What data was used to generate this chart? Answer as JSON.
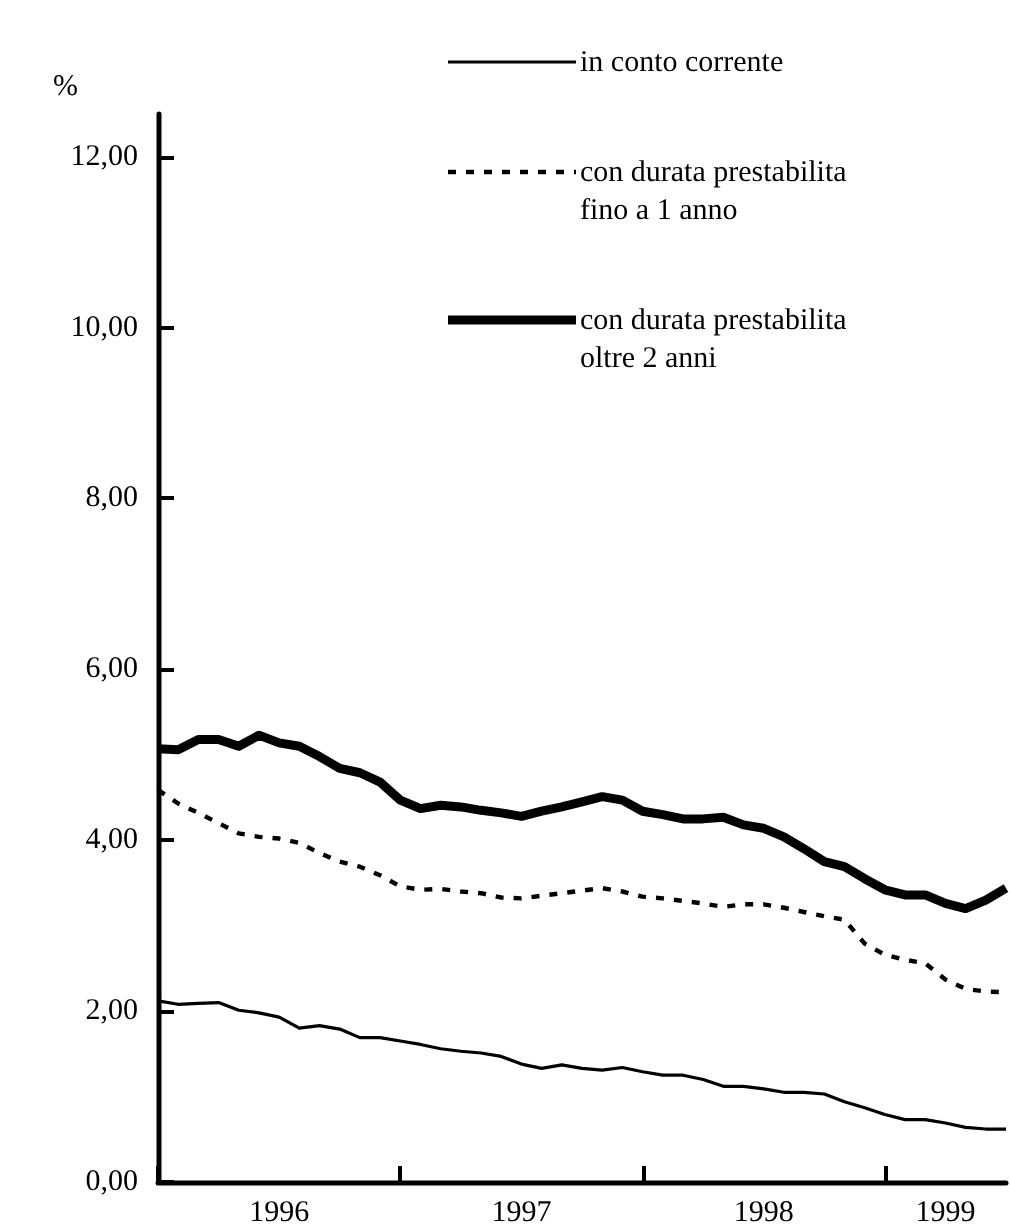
{
  "chart_data": {
    "type": "line",
    "ylabel": "%",
    "legend": "top right",
    "grid": false,
    "marker": "none",
    "x": [
      "1996-01",
      "1996-02",
      "1996-03",
      "1996-04",
      "1996-05",
      "1996-06",
      "1996-07",
      "1996-08",
      "1996-09",
      "1996-10",
      "1996-11",
      "1996-12",
      "1997-01",
      "1997-02",
      "1997-03",
      "1997-04",
      "1997-05",
      "1997-06",
      "1997-07",
      "1997-08",
      "1997-09",
      "1997-10",
      "1997-11",
      "1997-12",
      "1998-01",
      "1998-02",
      "1998-03",
      "1998-04",
      "1998-05",
      "1998-06",
      "1998-07",
      "1998-08",
      "1998-09",
      "1998-10",
      "1998-11",
      "1998-12",
      "1999-01",
      "1999-02",
      "1999-03",
      "1999-04",
      "1999-05",
      "1999-06",
      "1999-07"
    ],
    "xlim": [
      "1996-01",
      "1999-07"
    ],
    "xticks": [
      {
        "value": "1996-01",
        "label": null
      },
      {
        "value": "1996-07",
        "label": "1996"
      },
      {
        "value": "1997-01",
        "label": null
      },
      {
        "value": "1997-07",
        "label": "1997"
      },
      {
        "value": "1998-01",
        "label": null
      },
      {
        "value": "1998-07",
        "label": "1998"
      },
      {
        "value": "1999-01",
        "label": null
      },
      {
        "value": "1999-04",
        "label": "1999"
      }
    ],
    "ylim": [
      0,
      12.5
    ],
    "yticks": [
      {
        "value": 0,
        "label": "0,00"
      },
      {
        "value": 2,
        "label": "2,00"
      },
      {
        "value": 4,
        "label": "4,00"
      },
      {
        "value": 6,
        "label": "6,00"
      },
      {
        "value": 8,
        "label": "8,00"
      },
      {
        "value": 10,
        "label": "10,00"
      },
      {
        "value": 12,
        "label": "12,00"
      }
    ],
    "series": [
      {
        "name": "in conto corrente",
        "color": "#000000",
        "line_style": "solid",
        "values": [
          2.12,
          2.08,
          2.09,
          2.1,
          2.01,
          1.98,
          1.93,
          1.8,
          1.83,
          1.79,
          1.69,
          1.69,
          1.65,
          1.61,
          1.56,
          1.53,
          1.51,
          1.47,
          1.38,
          1.33,
          1.37,
          1.33,
          1.31,
          1.34,
          1.29,
          1.25,
          1.25,
          1.2,
          1.12,
          1.12,
          1.09,
          1.05,
          1.05,
          1.03,
          0.94,
          0.87,
          0.79,
          0.73,
          0.73,
          0.69,
          0.64,
          0.62,
          0.62
        ]
      },
      {
        "name": "con durata prestabilita fino a 1 anno",
        "color": "#000000",
        "line_style": "dashed",
        "values": [
          4.59,
          4.43,
          4.32,
          4.2,
          4.08,
          4.04,
          4.02,
          3.97,
          3.85,
          3.75,
          3.69,
          3.59,
          3.46,
          3.42,
          3.43,
          3.4,
          3.38,
          3.33,
          3.32,
          3.35,
          3.38,
          3.41,
          3.44,
          3.4,
          3.34,
          3.32,
          3.29,
          3.26,
          3.22,
          3.25,
          3.25,
          3.21,
          3.16,
          3.11,
          3.07,
          2.79,
          2.66,
          2.6,
          2.56,
          2.37,
          2.26,
          2.23,
          2.22
        ]
      },
      {
        "name": "con durata prestabilita oltre 2 anni",
        "color": "#000000",
        "line_style": "solid",
        "values": [
          5.07,
          5.06,
          5.18,
          5.18,
          5.1,
          5.23,
          5.14,
          5.1,
          4.98,
          4.84,
          4.79,
          4.68,
          4.47,
          4.37,
          4.41,
          4.39,
          4.35,
          4.32,
          4.28,
          4.34,
          4.39,
          4.45,
          4.51,
          4.47,
          4.34,
          4.3,
          4.25,
          4.25,
          4.27,
          4.18,
          4.14,
          4.04,
          3.9,
          3.75,
          3.69,
          3.55,
          3.42,
          3.36,
          3.36,
          3.26,
          3.2,
          3.3,
          3.44
        ]
      }
    ]
  }
}
